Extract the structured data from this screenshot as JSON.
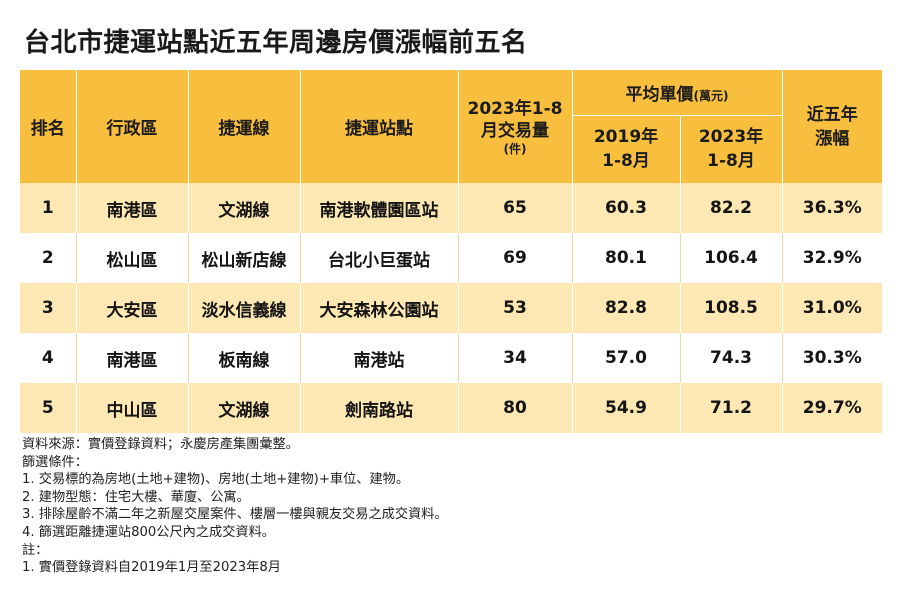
{
  "title": "台北市捷運站點近五年周邊房價漲幅前五名",
  "table": {
    "headers": {
      "rank": "排名",
      "district": "行政區",
      "line": "捷運線",
      "station": "捷運站點",
      "volume_line1": "2023年1-8",
      "volume_line2": "月交易量",
      "volume_unit": "(件)",
      "avg_price": "平均單價",
      "avg_price_unit": "(萬元)",
      "y2019_line1": "2019年",
      "y2019_line2": "1-8月",
      "y2023_line1": "2023年",
      "y2023_line2": "1-8月",
      "growth_line1": "近五年",
      "growth_line2": "漲幅"
    },
    "rows": [
      {
        "rank": "1",
        "district": "南港區",
        "line": "文湖線",
        "station": "南港軟體園區站",
        "volume": "65",
        "price_2019": "60.3",
        "price_2023": "82.2",
        "growth": "36.3%"
      },
      {
        "rank": "2",
        "district": "松山區",
        "line": "松山新店線",
        "station": "台北小巨蛋站",
        "volume": "69",
        "price_2019": "80.1",
        "price_2023": "106.4",
        "growth": "32.9%"
      },
      {
        "rank": "3",
        "district": "大安區",
        "line": "淡水信義線",
        "station": "大安森林公園站",
        "volume": "53",
        "price_2019": "82.8",
        "price_2023": "108.5",
        "growth": "31.0%"
      },
      {
        "rank": "4",
        "district": "南港區",
        "line": "板南線",
        "station": "南港站",
        "volume": "34",
        "price_2019": "57.0",
        "price_2023": "74.3",
        "growth": "30.3%"
      },
      {
        "rank": "5",
        "district": "中山區",
        "line": "文湖線",
        "station": "劍南路站",
        "volume": "80",
        "price_2019": "54.9",
        "price_2023": "71.2",
        "growth": "29.7%"
      }
    ]
  },
  "notes": [
    "資料來源：實價登錄資料；永慶房產集團彙整。",
    "篩選條件：",
    "1. 交易標的為房地(土地+建物)、房地(土地+建物)+車位、建物。",
    "2. 建物型態：住宅大樓、華廈、公寓。",
    "3. 排除屋齡不滿二年之新屋交屋案件、樓層一樓與親友交易之成交資料。",
    "4. 篩選距離捷運站800公尺內之成交資料。",
    "註：",
    "1. 實價登錄資料自2019年1月至2023年8月"
  ],
  "colors": {
    "header_bg": "#f8be3e",
    "odd_row_bg": "#fde7b3",
    "even_row_bg": "#ffffff"
  }
}
